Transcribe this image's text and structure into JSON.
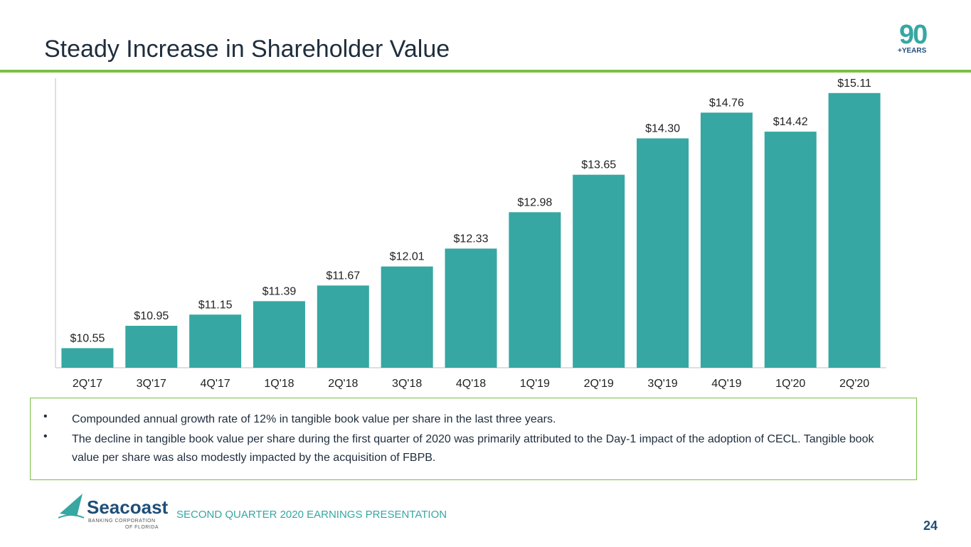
{
  "slide": {
    "title": "Steady Increase in Shareholder Value",
    "badge_number": "90",
    "badge_text": "+YEARS",
    "footer": "SECOND QUARTER 2020 EARNINGS PRESENTATION",
    "page_number": "24",
    "company": {
      "name": "Seacoast",
      "line1": "BANKING CORPORATION",
      "line2": "OF FLORIDA"
    }
  },
  "bullets": [
    "Compounded annual growth rate of 12% in tangible book value per share in the last three years.",
    "The decline in tangible book value per share during the first quarter of 2020 was primarily attributed to the Day-1 impact of the adoption of CECL. Tangible book value per share was also modestly impacted by the acquisition of FBPB."
  ],
  "bullet_symbol": "•",
  "colors": {
    "bar": "#36a7a2",
    "accent": "#7ac143",
    "title": "#1f2d3d",
    "navy": "#1f4e79"
  },
  "chart_data": {
    "type": "bar",
    "categories": [
      "2Q'17",
      "3Q'17",
      "4Q'17",
      "1Q'18",
      "2Q'18",
      "3Q'18",
      "4Q'18",
      "1Q'19",
      "2Q'19",
      "3Q'19",
      "4Q'19",
      "1Q'20",
      "2Q'20"
    ],
    "values": [
      10.55,
      10.95,
      11.15,
      11.39,
      11.67,
      12.01,
      12.33,
      12.98,
      13.65,
      14.3,
      14.76,
      14.42,
      15.11
    ],
    "labels": [
      "$10.55",
      "$10.95",
      "$11.15",
      "$11.39",
      "$11.67",
      "$12.01",
      "$12.33",
      "$12.98",
      "$13.65",
      "$14.30",
      "$14.76",
      "$14.42",
      "$15.11"
    ],
    "title": "",
    "xlabel": "",
    "ylabel": "",
    "ylim": [
      10.2,
      15.4
    ]
  }
}
